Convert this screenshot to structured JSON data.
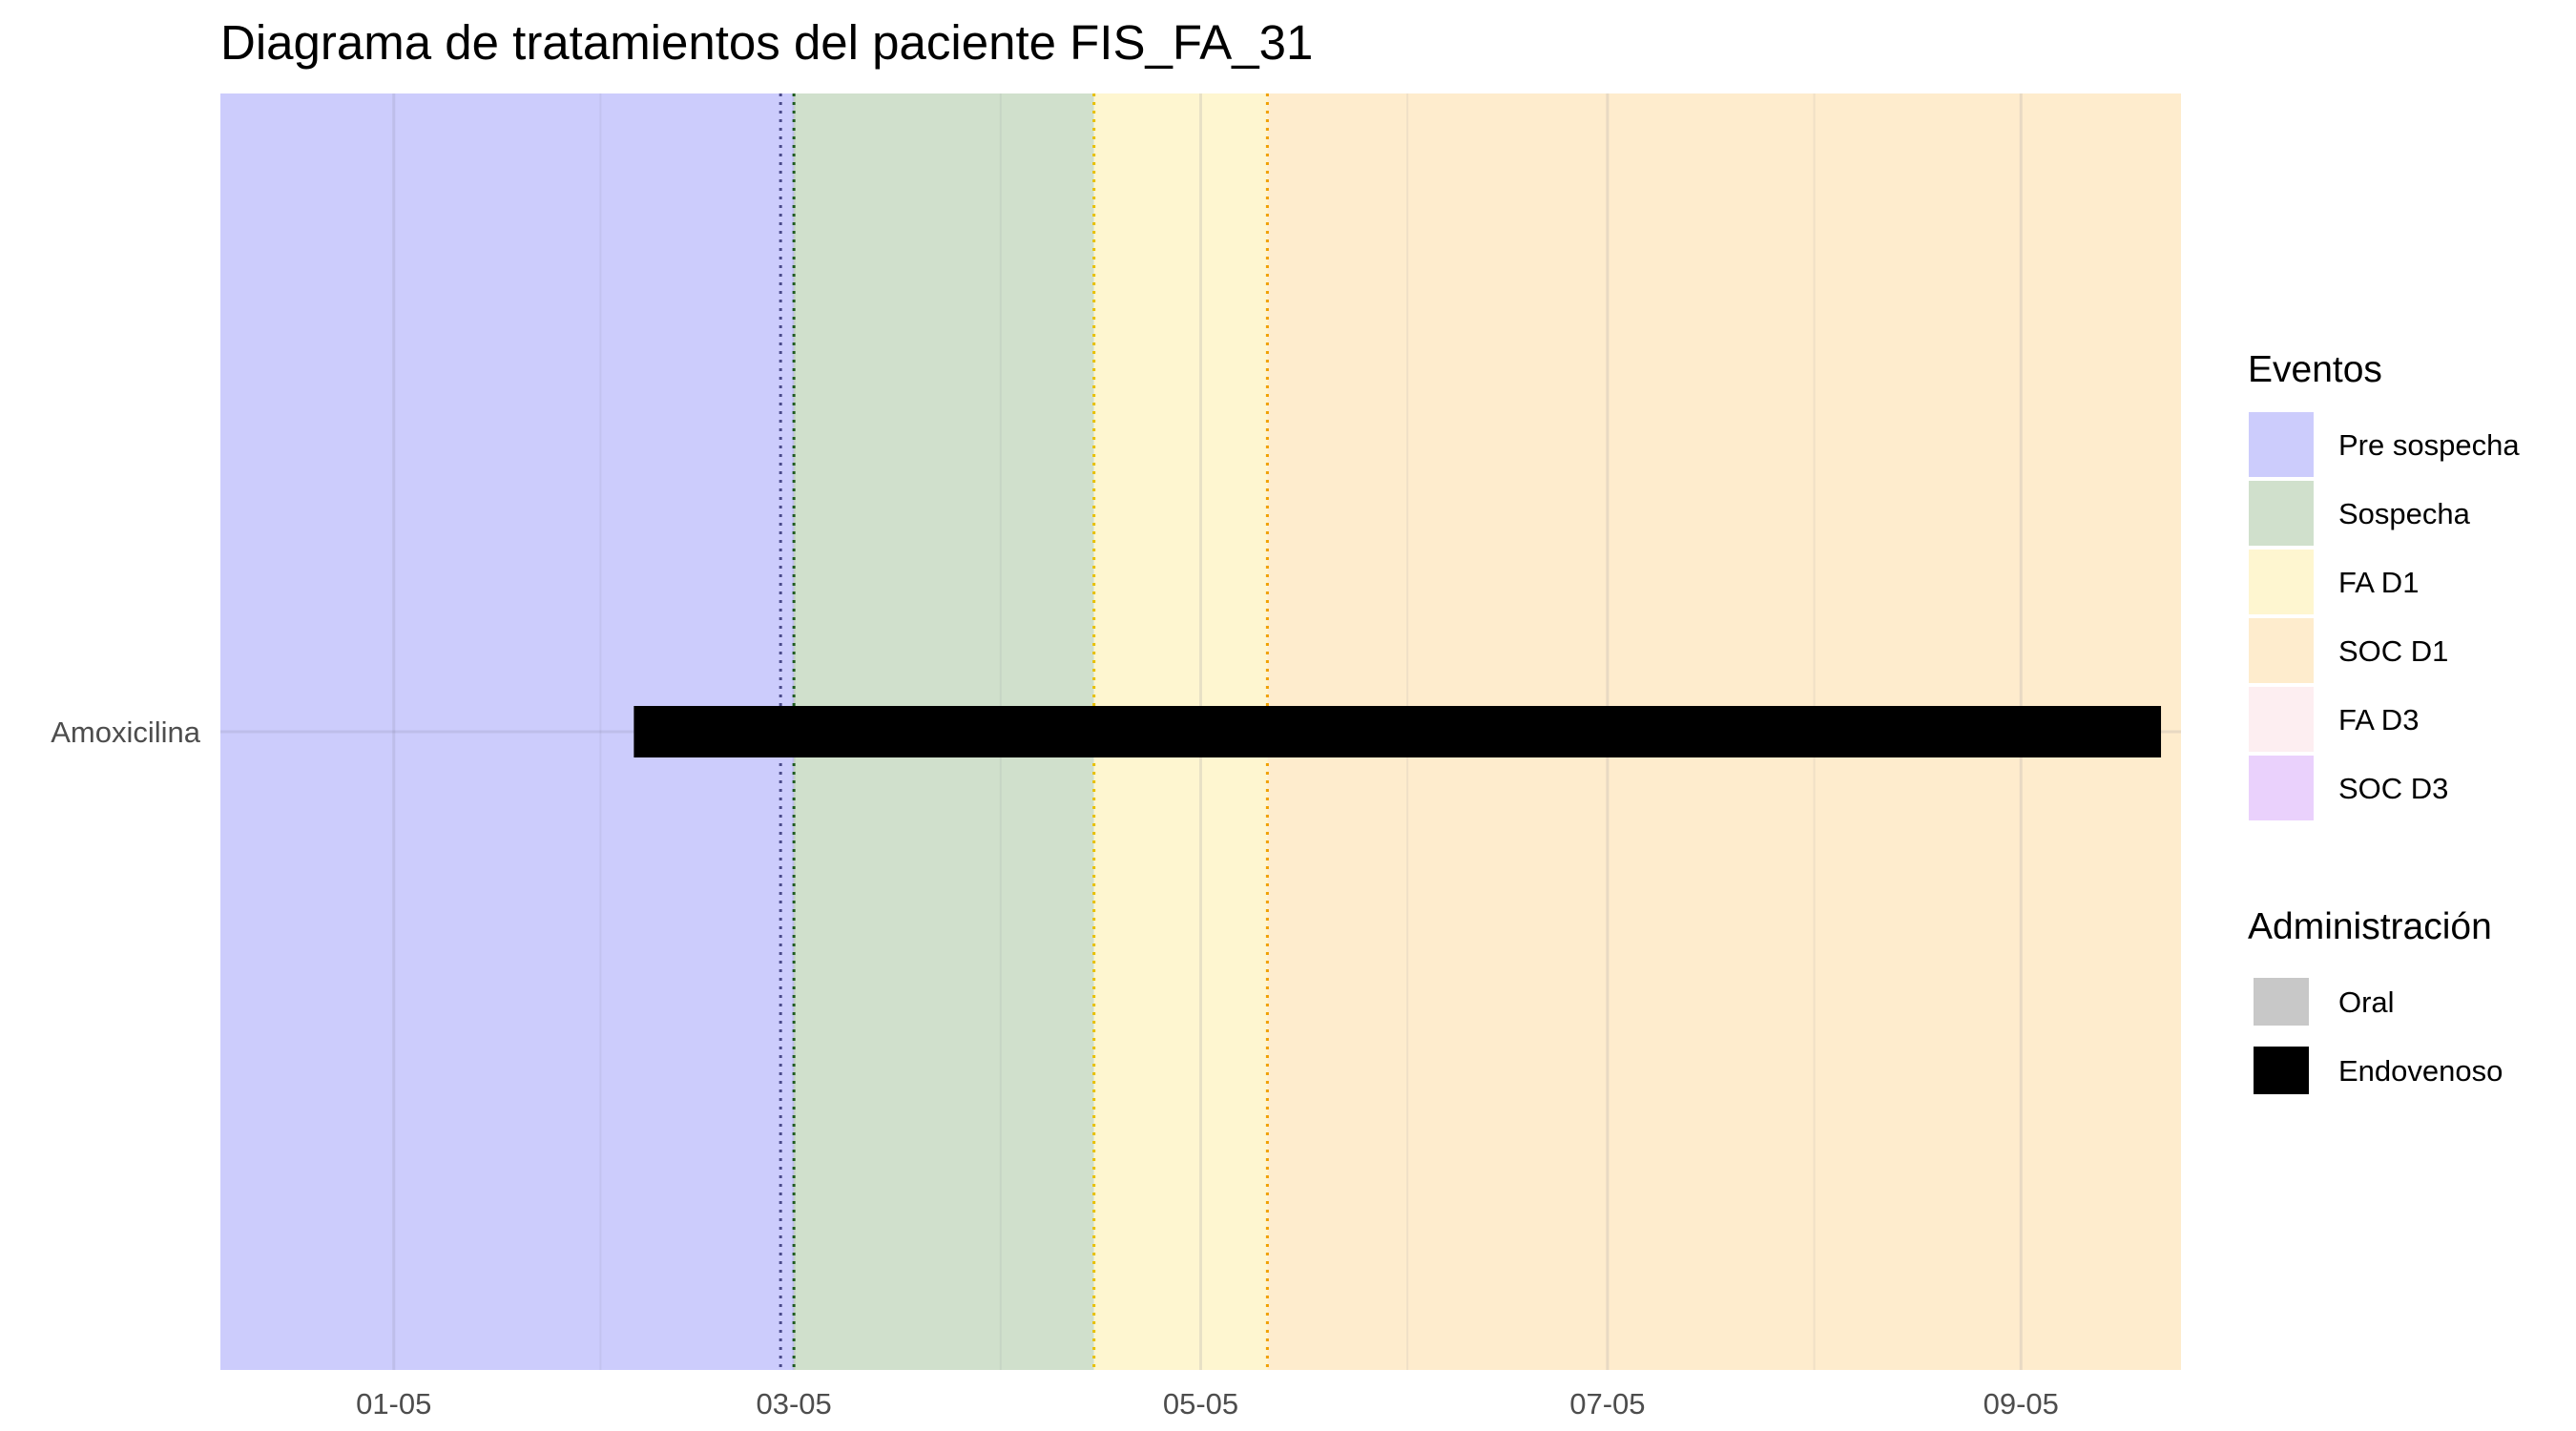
{
  "chart_data": {
    "type": "gantt",
    "title": "Diagrama de tratamientos del paciente FIS_FA_31",
    "xlabel": "",
    "ylabel": "",
    "x_axis": {
      "range": [
        "2023-12-10",
        "2024-09-29"
      ],
      "ticks": [
        {
          "date": "2024-01-05",
          "label": "01-05"
        },
        {
          "date": "2024-03-05",
          "label": "03-05"
        },
        {
          "date": "2024-05-05",
          "label": "05-05"
        },
        {
          "date": "2024-07-05",
          "label": "07-05"
        },
        {
          "date": "2024-09-05",
          "label": "09-05"
        }
      ],
      "minor_ticks": [
        "2023-12-05",
        "2024-02-05",
        "2024-04-05",
        "2024-06-05",
        "2024-08-05",
        "2024-10-05"
      ]
    },
    "categories": [
      "Amoxicilina"
    ],
    "grid": true,
    "periods": [
      {
        "event": "Pre sospecha",
        "start": "2023-12-10",
        "end": "2024-03-05"
      },
      {
        "event": "Sospecha",
        "start": "2024-03-05",
        "end": "2024-04-19"
      },
      {
        "event": "FA D1",
        "start": "2024-04-19",
        "end": "2024-05-15"
      },
      {
        "event": "SOC D1",
        "start": "2024-05-15",
        "end": "2024-09-29"
      }
    ],
    "event_lines": [
      {
        "date": "2024-03-03",
        "color": "#4a4a8a"
      },
      {
        "date": "2024-03-05",
        "color": "#1f5c1f"
      },
      {
        "date": "2024-04-19",
        "color": "#e8c000"
      },
      {
        "date": "2024-05-15",
        "color": "#f0a000"
      }
    ],
    "treatments": [
      {
        "drug": "Amoxicilina",
        "administration": "Endovenoso",
        "start": "2024-02-10",
        "end": "2024-09-26"
      }
    ],
    "legends": [
      {
        "title": "Eventos",
        "position": "right",
        "items": [
          {
            "label": "Pre sospecha",
            "color": "#ccccfc"
          },
          {
            "label": "Sospecha",
            "color": "#d0e0cc"
          },
          {
            "label": "FA D1",
            "color": "#fef6d0"
          },
          {
            "label": "SOC D1",
            "color": "#feeccd"
          },
          {
            "label": "FA D3",
            "color": "#fdeef1"
          },
          {
            "label": "SOC D3",
            "color": "#ead1fc"
          }
        ]
      },
      {
        "title": "Administración",
        "position": "right",
        "items": [
          {
            "label": "Oral",
            "color": "#c8c8c8"
          },
          {
            "label": "Endovenoso",
            "color": "#000000"
          }
        ]
      }
    ]
  }
}
